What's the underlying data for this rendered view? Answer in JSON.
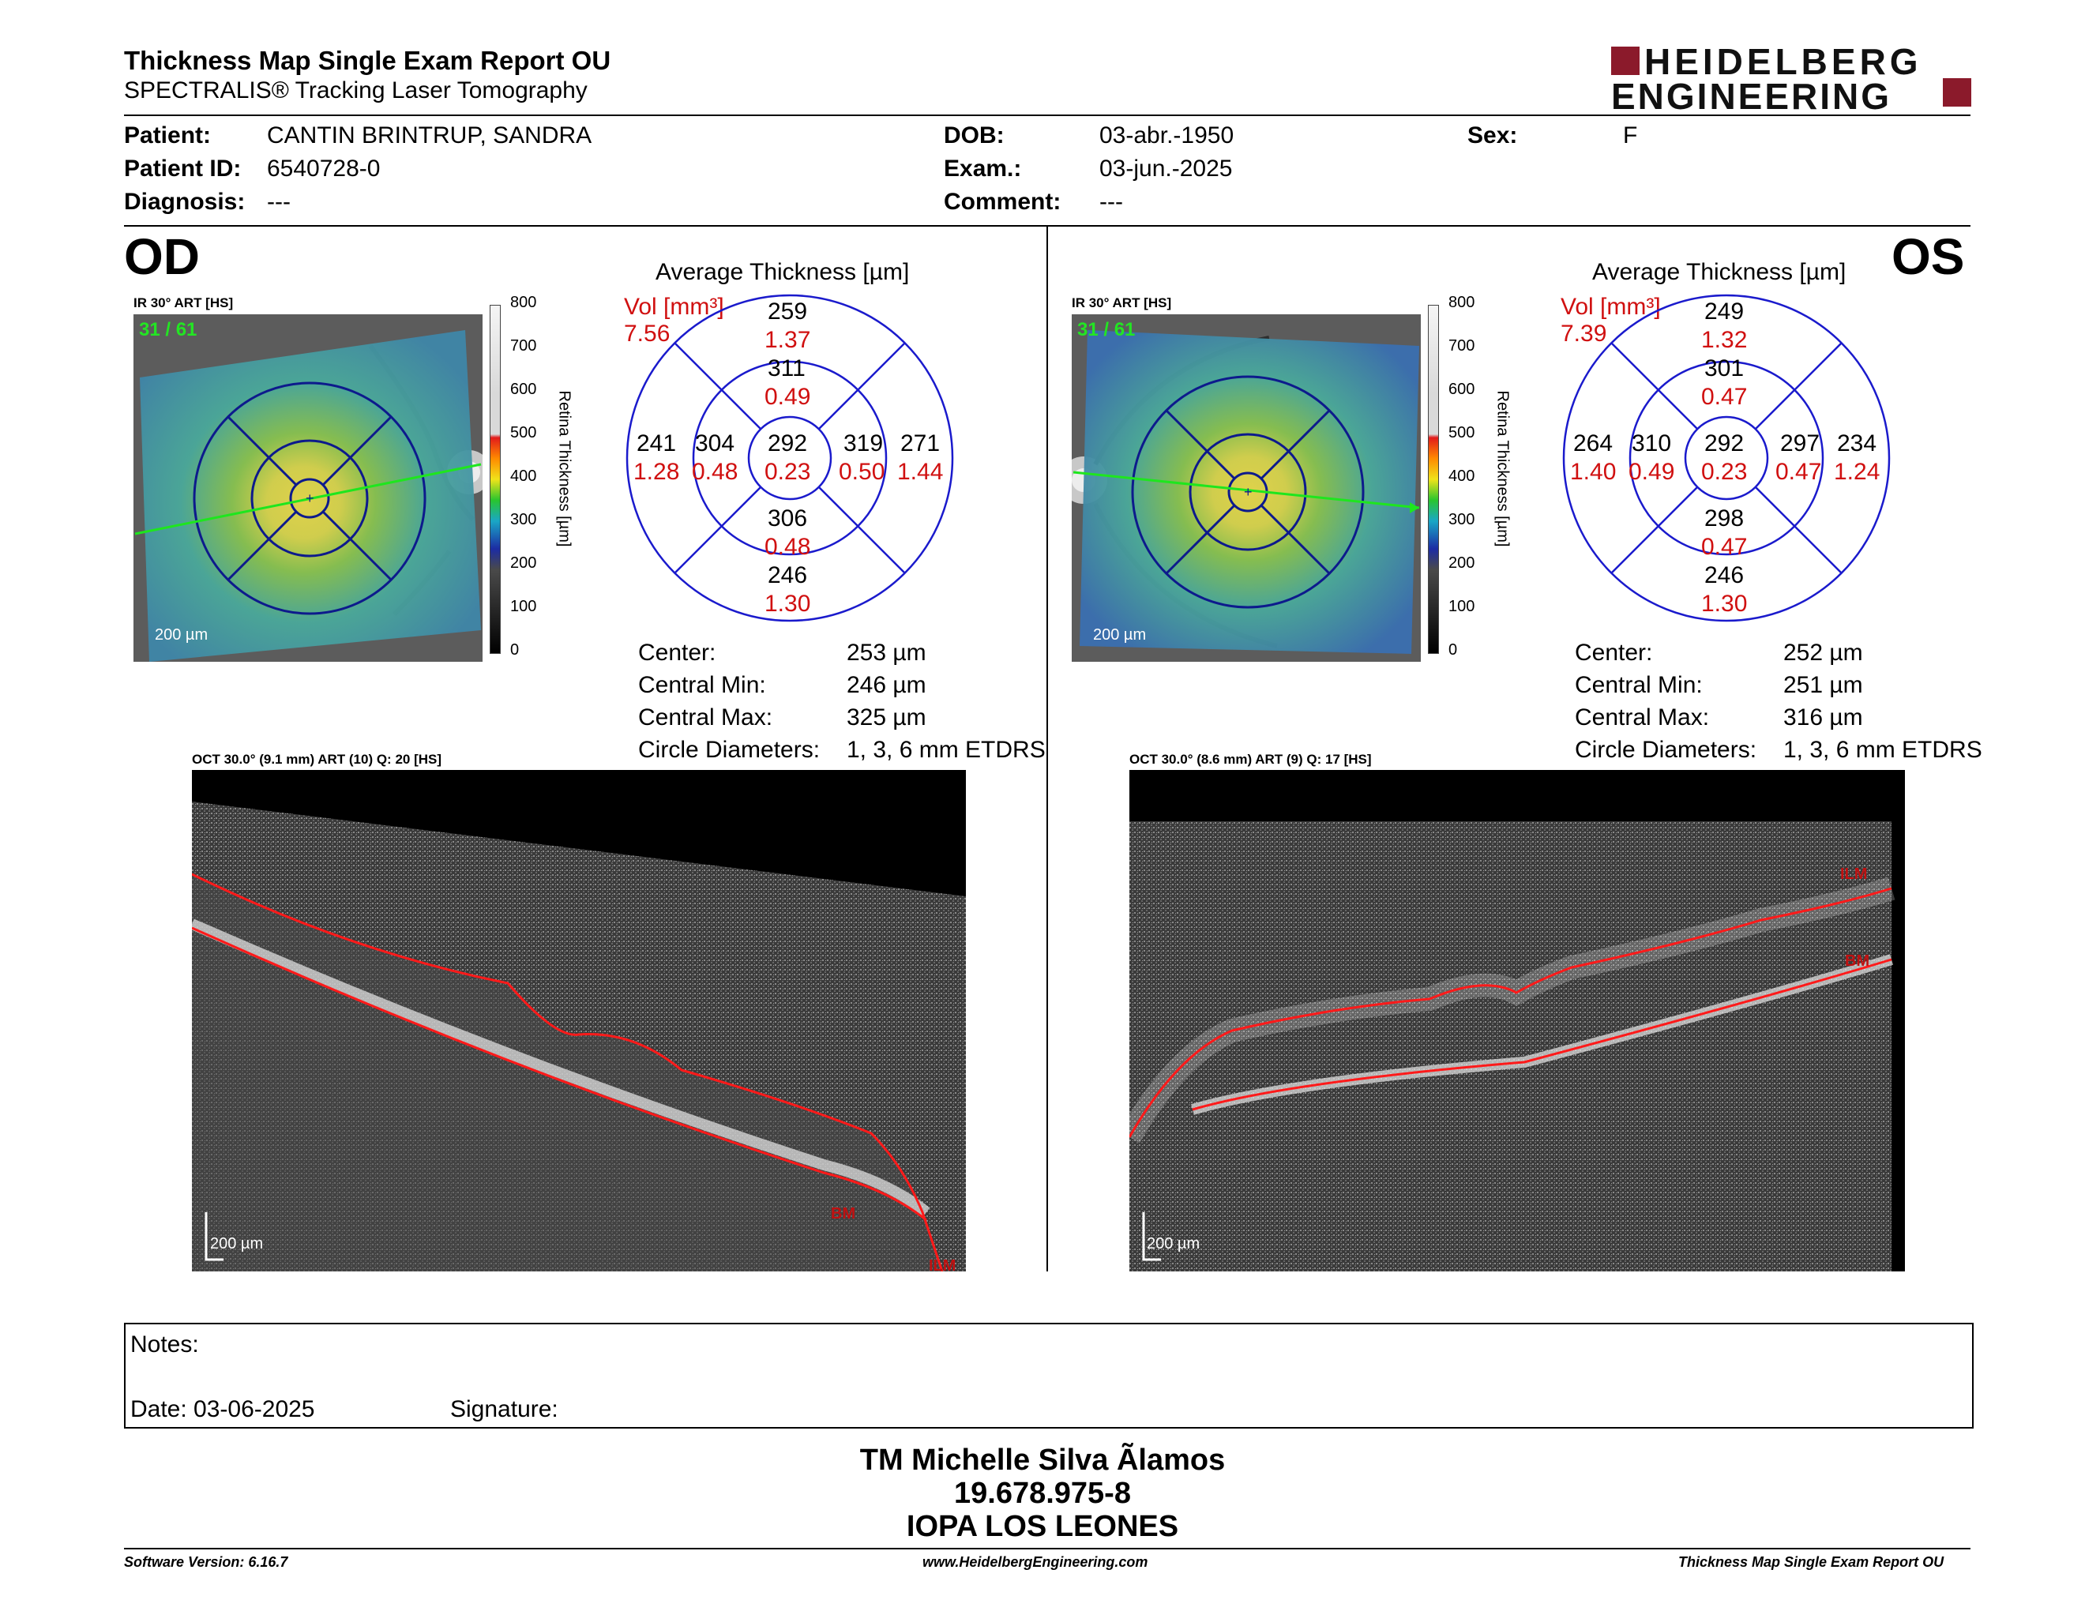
{
  "header": {
    "title": "Thickness Map Single Exam Report OU",
    "subtitle": "SPECTRALIS® Tracking Laser Tomography",
    "logo_line1": "HEIDELBERG",
    "logo_line2": "ENGINEERING",
    "logo_color": "#8b1a2b"
  },
  "patient": {
    "patient_label": "Patient:",
    "patient_value": "CANTIN BRINTRUP, SANDRA",
    "id_label": "Patient ID:",
    "id_value": "6540728-0",
    "diagnosis_label": "Diagnosis:",
    "diagnosis_value": "---",
    "dob_label": "DOB:",
    "dob_value": "03-abr.-1950",
    "exam_label": "Exam.:",
    "exam_value": "03-jun.-2025",
    "comment_label": "Comment:",
    "comment_value": "---",
    "sex_label": "Sex:",
    "sex_value": "F"
  },
  "od": {
    "eye": "OD",
    "ir_caption": "IR 30° ART [HS]",
    "frame_counter": "31 / 61",
    "scale_bar": "200 µm",
    "colorbar_ticks": [
      "800",
      "700",
      "600",
      "500",
      "400",
      "300",
      "200",
      "100",
      "0"
    ],
    "colorbar_title": "Retina Thickness [µm]",
    "avg_title": "Average Thickness [µm]",
    "vol_label": "Vol [mm³]",
    "vol_value": "7.56",
    "sectors": {
      "outer_top": "259",
      "outer_top_vol": "1.37",
      "inner_top": "311",
      "inner_top_vol": "0.49",
      "outer_left": "241",
      "outer_left_vol": "1.28",
      "inner_left": "304",
      "inner_left_vol": "0.48",
      "center": "292",
      "center_vol": "0.23",
      "inner_right": "319",
      "inner_right_vol": "0.50",
      "outer_right": "271",
      "outer_right_vol": "1.44",
      "inner_bottom": "306",
      "inner_bottom_vol": "0.48",
      "outer_bottom": "246",
      "outer_bottom_vol": "1.30"
    },
    "stats": {
      "center_label": "Center:",
      "center_value": "253 µm",
      "cmin_label": "Central Min:",
      "cmin_value": "246 µm",
      "cmax_label": "Central Max:",
      "cmax_value": "325 µm",
      "diam_label": "Circle Diameters:",
      "diam_value": "1, 3, 6 mm ETDRS"
    },
    "oct_caption": "OCT 30.0° (9.1 mm) ART (10) Q: 20 [HS]",
    "oct_scale": "200 µm",
    "oct_bm": "BM",
    "oct_ilm": "ILM"
  },
  "os": {
    "eye": "OS",
    "ir_caption": "IR 30° ART [HS]",
    "frame_counter": "31 / 61",
    "scale_bar": "200 µm",
    "colorbar_ticks": [
      "800",
      "700",
      "600",
      "500",
      "400",
      "300",
      "200",
      "100",
      "0"
    ],
    "colorbar_title": "Retina Thickness [µm]",
    "avg_title": "Average Thickness [µm]",
    "vol_label": "Vol [mm³]",
    "vol_value": "7.39",
    "sectors": {
      "outer_top": "249",
      "outer_top_vol": "1.32",
      "inner_top": "301",
      "inner_top_vol": "0.47",
      "outer_left": "264",
      "outer_left_vol": "1.40",
      "inner_left": "310",
      "inner_left_vol": "0.49",
      "center": "292",
      "center_vol": "0.23",
      "inner_right": "297",
      "inner_right_vol": "0.47",
      "outer_right": "234",
      "outer_right_vol": "1.24",
      "inner_bottom": "298",
      "inner_bottom_vol": "0.47",
      "outer_bottom": "246",
      "outer_bottom_vol": "1.30"
    },
    "stats": {
      "center_label": "Center:",
      "center_value": "252 µm",
      "cmin_label": "Central Min:",
      "cmin_value": "251 µm",
      "cmax_label": "Central Max:",
      "cmax_value": "316 µm",
      "diam_label": "Circle Diameters:",
      "diam_value": "1, 3, 6 mm ETDRS"
    },
    "oct_caption": "OCT 30.0° (8.6 mm) ART (9) Q: 17 [HS]",
    "oct_scale": "200 µm",
    "oct_ilm": "ILM",
    "oct_bm": "BM"
  },
  "notes": {
    "notes_label": "Notes:",
    "date_label": "Date: 03-06-2025",
    "signature_label": "Signature:"
  },
  "signer": {
    "name": "TM Michelle Silva Ãlamos",
    "id": "19.678.975-8",
    "org": "IOPA LOS LEONES"
  },
  "footer": {
    "software": "Software Version: 6.16.7",
    "website": "www.HeidelbergEngineering.com",
    "report": "Thickness Map Single Exam Report OU"
  }
}
